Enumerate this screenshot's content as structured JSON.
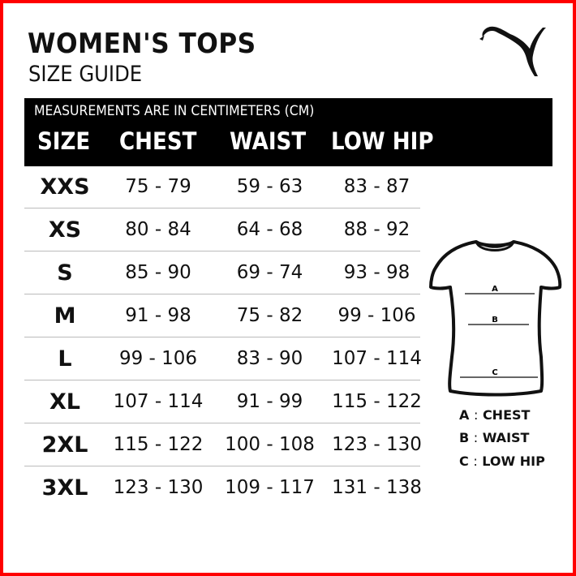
{
  "header": {
    "title": "WOMEN'S TOPS",
    "subtitle": "SIZE GUIDE",
    "logo": "PUMA"
  },
  "table": {
    "note": "MEASUREMENTS ARE IN CENTIMETERS (CM)",
    "columns": [
      "SIZE",
      "CHEST",
      "WAIST",
      "LOW HIP"
    ],
    "rows": [
      [
        "XXS",
        "75 - 79",
        "59 - 63",
        "83 - 87"
      ],
      [
        "XS",
        "80 - 84",
        "64 - 68",
        "88 - 92"
      ],
      [
        "S",
        "85 - 90",
        "69 - 74",
        "93 - 98"
      ],
      [
        "M",
        "91 - 98",
        "75 - 82",
        "99 - 106"
      ],
      [
        "L",
        "99 - 106",
        "83 - 90",
        "107 - 114"
      ],
      [
        "XL",
        "107 - 114",
        "91 - 99",
        "115 - 122"
      ],
      [
        "2XL",
        "115 - 122",
        "100 - 108",
        "123 - 130"
      ],
      [
        "3XL",
        "123 - 130",
        "109 - 117",
        "131 - 138"
      ]
    ]
  },
  "diagram": {
    "markers": [
      "A",
      "B",
      "C"
    ],
    "legend": [
      {
        "key": "A",
        "sep": ":",
        "label": "CHEST"
      },
      {
        "key": "B",
        "sep": ":",
        "label": "WAIST"
      },
      {
        "key": "C",
        "sep": ":",
        "label": "LOW HIP"
      }
    ]
  },
  "colors": {
    "border": "#ff0000",
    "band": "#000000"
  }
}
